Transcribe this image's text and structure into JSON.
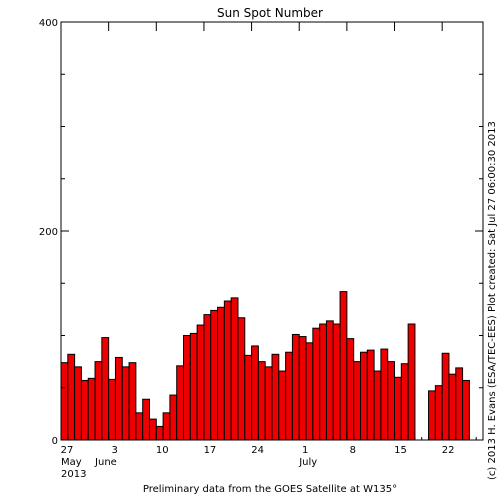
{
  "chart_data": {
    "type": "bar",
    "title": "Sun Spot Number",
    "ylim": [
      0,
      400
    ],
    "yticks": [
      0,
      200,
      400
    ],
    "bar_color": "#ee0000",
    "days": [
      "May 27",
      "May 28",
      "May 29",
      "May 30",
      "May 31",
      "Jun 1",
      "Jun 2",
      "Jun 3",
      "Jun 4",
      "Jun 5",
      "Jun 6",
      "Jun 7",
      "Jun 8",
      "Jun 9",
      "Jun 10",
      "Jun 11",
      "Jun 12",
      "Jun 13",
      "Jun 14",
      "Jun 15",
      "Jun 16",
      "Jun 17",
      "Jun 18",
      "Jun 19",
      "Jun 20",
      "Jun 21",
      "Jun 22",
      "Jun 23",
      "Jun 24",
      "Jun 25",
      "Jun 26",
      "Jun 27",
      "Jun 28",
      "Jun 29",
      "Jun 30",
      "Jul 1",
      "Jul 2",
      "Jul 3",
      "Jul 4",
      "Jul 5",
      "Jul 6",
      "Jul 7",
      "Jul 8",
      "Jul 9",
      "Jul 10",
      "Jul 11",
      "Jul 12",
      "Jul 13",
      "Jul 14",
      "Jul 15",
      "Jul 16",
      "Jul 17",
      "Jul 18",
      "Jul 19",
      "Jul 20",
      "Jul 21",
      "Jul 22",
      "Jul 23",
      "Jul 24",
      "Jul 25",
      "Jul 26",
      "Jul 27"
    ],
    "values": [
      74,
      82,
      70,
      57,
      59,
      75,
      98,
      58,
      79,
      70,
      74,
      26,
      39,
      20,
      13,
      26,
      43,
      71,
      100,
      102,
      110,
      120,
      124,
      127,
      133,
      136,
      117,
      81,
      90,
      75,
      70,
      82,
      66,
      84,
      101,
      99,
      93,
      107,
      111,
      114,
      111,
      142,
      97,
      75,
      84,
      86,
      66,
      87,
      75,
      60,
      73,
      111,
      null,
      null,
      47,
      52,
      83,
      63,
      69,
      57,
      null,
      null
    ],
    "x_tick_labels": [
      {
        "day_index": 0,
        "label": "27"
      },
      {
        "day_index": 7,
        "label": "3"
      },
      {
        "day_index": 14,
        "label": "10"
      },
      {
        "day_index": 21,
        "label": "17"
      },
      {
        "day_index": 28,
        "label": "24"
      },
      {
        "day_index": 35,
        "label": "1"
      },
      {
        "day_index": 42,
        "label": "8"
      },
      {
        "day_index": 49,
        "label": "15"
      },
      {
        "day_index": 56,
        "label": "22"
      }
    ],
    "month_labels": [
      {
        "day_index": 0,
        "label": "May"
      },
      {
        "day_index": 5,
        "label": "June"
      },
      {
        "day_index": 35,
        "label": "July"
      }
    ],
    "year_label": "2013"
  },
  "footer_text": "Preliminary data from the GOES Satellite at W135°",
  "right_side_text": "(c) 2013 H. Evans (ESA/TEC-EES)   Plot created: Sat Jul 27 06:00:30 2013"
}
